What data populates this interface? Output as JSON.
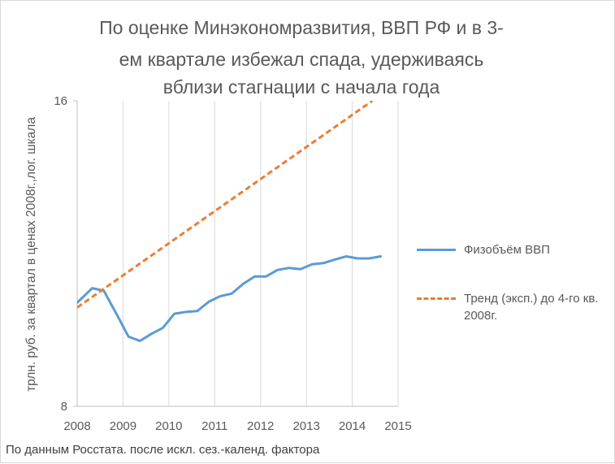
{
  "title_lines": [
    "По оценке Минэкономразвития, ВВП РФ и в 3-",
    "ем квартале избежал спада, удерживаясь",
    "вблизи стагнации с начала года"
  ],
  "y_axis_title": "трлн. руб. за квартал в ценах 2008г.,лог. шкала",
  "source_note": "По данным Росстата. после искл. сез.-календ. фактора",
  "legend": {
    "gdp_label": "Физобъём ВВП",
    "trend_label": "Тренд (эксп.) до 4-го кв. 2008г."
  },
  "colors": {
    "gdp": "#5b9bd5",
    "trend": "#ed7d31",
    "grid": "#d9d9d9",
    "axis": "#bfbfbf",
    "text": "#595959"
  },
  "chart_data": {
    "type": "line",
    "x_ticks": [
      "2008",
      "2009",
      "2010",
      "2011",
      "2012",
      "2013",
      "2014",
      "2015"
    ],
    "y_ticks": [
      "8",
      "16"
    ],
    "xlim": [
      2008,
      2015
    ],
    "ylim": [
      8,
      16
    ],
    "y_scale": "log2",
    "grid": "vertical",
    "legend_position": "right",
    "series": [
      {
        "name": "Физобъём ВВП",
        "style": "solid",
        "x": [
          2008.0,
          2008.33,
          2008.58,
          2008.88,
          2009.12,
          2009.37,
          2009.62,
          2009.87,
          2010.12,
          2010.37,
          2010.62,
          2010.87,
          2011.12,
          2011.37,
          2011.62,
          2011.87,
          2012.12,
          2012.37,
          2012.62,
          2012.87,
          2013.12,
          2013.37,
          2013.62,
          2013.87,
          2014.12,
          2014.37,
          2014.62
        ],
        "y": [
          10.12,
          10.46,
          10.4,
          9.82,
          9.37,
          9.28,
          9.43,
          9.56,
          9.87,
          9.91,
          9.93,
          10.14,
          10.27,
          10.33,
          10.56,
          10.74,
          10.74,
          10.9,
          10.95,
          10.92,
          11.04,
          11.07,
          11.16,
          11.24,
          11.19,
          11.19,
          11.24
        ]
      },
      {
        "name": "Тренд (эксп.) до 4-го кв. 2008г.",
        "style": "dashed",
        "x": [
          2008.0,
          2014.44
        ],
        "y": [
          10.01,
          16.0
        ]
      }
    ]
  }
}
